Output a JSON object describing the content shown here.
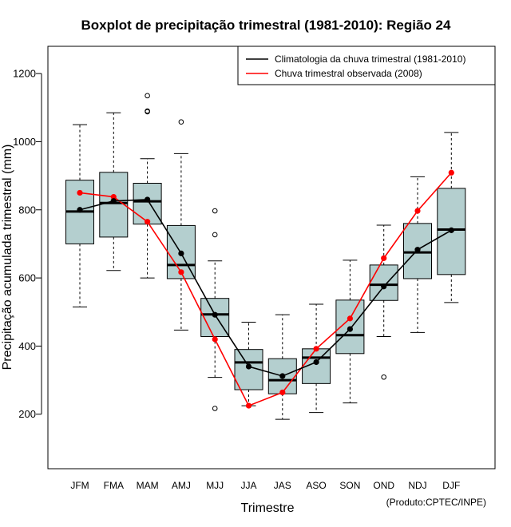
{
  "chart_data": {
    "type": "boxplot",
    "title": "Boxplot de precipitação trimestral (1981-2010): Região 24",
    "xlabel": "Trimestre",
    "ylabel": "Precipitação acumulada trimestral (mm)",
    "credit": "(Produto:CPTEC/INPE)",
    "ylim": [
      40,
      1280
    ],
    "yticks": [
      200,
      400,
      600,
      800,
      1000,
      1200
    ],
    "categories": [
      "JFM",
      "FMA",
      "MAM",
      "AMJ",
      "MJJ",
      "JJA",
      "JAS",
      "ASO",
      "SON",
      "OND",
      "NDJ",
      "DJF"
    ],
    "boxes": [
      {
        "min": 515,
        "q1": 700,
        "median": 795,
        "q3": 887,
        "max": 1050,
        "outliers": []
      },
      {
        "min": 622,
        "q1": 720,
        "median": 820,
        "q3": 910,
        "max": 1085,
        "outliers": []
      },
      {
        "min": 600,
        "q1": 758,
        "median": 825,
        "q3": 878,
        "max": 950,
        "outliers": [
          1088,
          1090,
          1135
        ]
      },
      {
        "min": 447,
        "q1": 598,
        "median": 638,
        "q3": 754,
        "max": 965,
        "outliers": [
          1058
        ]
      },
      {
        "min": 308,
        "q1": 428,
        "median": 493,
        "q3": 540,
        "max": 650,
        "outliers": [
          217,
          727,
          797
        ]
      },
      {
        "min": 225,
        "q1": 272,
        "median": 352,
        "q3": 390,
        "max": 470,
        "outliers": []
      },
      {
        "min": 185,
        "q1": 260,
        "median": 300,
        "q3": 363,
        "max": 492,
        "outliers": []
      },
      {
        "min": 205,
        "q1": 290,
        "median": 366,
        "q3": 392,
        "max": 523,
        "outliers": []
      },
      {
        "min": 233,
        "q1": 378,
        "median": 432,
        "q3": 535,
        "max": 652,
        "outliers": []
      },
      {
        "min": 428,
        "q1": 534,
        "median": 580,
        "q3": 638,
        "max": 755,
        "outliers": [
          309
        ]
      },
      {
        "min": 440,
        "q1": 598,
        "median": 675,
        "q3": 760,
        "max": 897,
        "outliers": []
      },
      {
        "min": 528,
        "q1": 610,
        "median": 742,
        "q3": 863,
        "max": 1027,
        "outliers": []
      }
    ],
    "series": [
      {
        "name": "Climatologia da chuva trimestral (1981-2010)",
        "color": "#000000",
        "values": [
          800,
          826,
          830,
          672,
          492,
          340,
          312,
          353,
          450,
          575,
          683,
          740
        ]
      },
      {
        "name": "Chuva trimestral observada (2008)",
        "color": "#ff0000",
        "values": [
          850,
          838,
          765,
          617,
          420,
          225,
          264,
          392,
          481,
          658,
          797,
          909
        ]
      }
    ],
    "box_fill": "#b4cfcf",
    "legend_position": "top-right"
  }
}
